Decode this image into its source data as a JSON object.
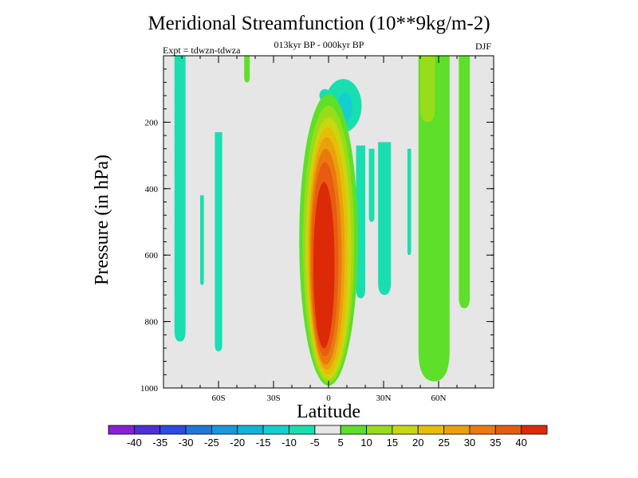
{
  "chart_data": {
    "type": "contour",
    "title": "Meridional Streamfunction (10**9kg/m-2)",
    "subtitle": "013kyr BP - 000kyr BP",
    "left_string": "Expt = tdwzn-tdwza",
    "right_string": "DJF",
    "xlabel": "Latitude",
    "ylabel": "Pressure (in hPa)",
    "xlim": [
      -90,
      90
    ],
    "ylim": [
      1000,
      0
    ],
    "x_ticks": [
      {
        "value": -60,
        "label": "60S"
      },
      {
        "value": -30,
        "label": "30S"
      },
      {
        "value": 0,
        "label": "0"
      },
      {
        "value": 30,
        "label": "30N"
      },
      {
        "value": 60,
        "label": "60N"
      }
    ],
    "y_ticks": [
      {
        "value": 200,
        "label": "200"
      },
      {
        "value": 400,
        "label": "400"
      },
      {
        "value": 600,
        "label": "600"
      },
      {
        "value": 800,
        "label": "800"
      },
      {
        "value": 1000,
        "label": "1000"
      }
    ],
    "background_color": "#e6e6e6",
    "colorbar": {
      "labels": [
        "-40",
        "-35",
        "-30",
        "-25",
        "-20",
        "-15",
        "-10",
        "-5",
        "5",
        "10",
        "15",
        "20",
        "25",
        "30",
        "35",
        "40"
      ],
      "colors": [
        "#8a1fd8",
        "#4c2fd6",
        "#2a4ce0",
        "#1f78d8",
        "#1a98dc",
        "#10b4d8",
        "#14cfcf",
        "#18deb0",
        "#e6e6e6",
        "#5ee02a",
        "#98dc1a",
        "#c8d810",
        "#e6be08",
        "#eaa00c",
        "#ea7a10",
        "#e85c12",
        "#dc2a08"
      ]
    },
    "field_regions": [
      {
        "name": "tropical-positive-cell",
        "lat_range": [
          -12,
          12
        ],
        "p_range": [
          120,
          990
        ],
        "peak_value": 40
      },
      {
        "name": "tropical-negative-cell-top",
        "lat_range": [
          -2,
          12
        ],
        "p_range": [
          70,
          230
        ],
        "peak_value": -10
      },
      {
        "name": "sh-negative-band-80s",
        "lat_range": [
          -84,
          -78
        ],
        "p_range": [
          0,
          860
        ],
        "peak_value": -5
      },
      {
        "name": "sh-negative-band-60s",
        "lat_range": [
          -62,
          -58
        ],
        "p_range": [
          230,
          890
        ],
        "peak_value": -5
      },
      {
        "name": "nh-negative-bands-20-30n",
        "lat_range": [
          15,
          35
        ],
        "p_range": [
          260,
          750
        ],
        "peak_value": -5
      },
      {
        "name": "nh-positive-band-50-60n",
        "lat_range": [
          49,
          66
        ],
        "p_range": [
          0,
          980
        ],
        "peak_value": 10
      },
      {
        "name": "nh-positive-band-75n",
        "lat_range": [
          71,
          77
        ],
        "p_range": [
          0,
          760
        ],
        "peak_value": 5
      },
      {
        "name": "sh-positive-band-45s",
        "lat_range": [
          -46,
          -43
        ],
        "p_range": [
          0,
          80
        ],
        "peak_value": 5
      }
    ]
  }
}
